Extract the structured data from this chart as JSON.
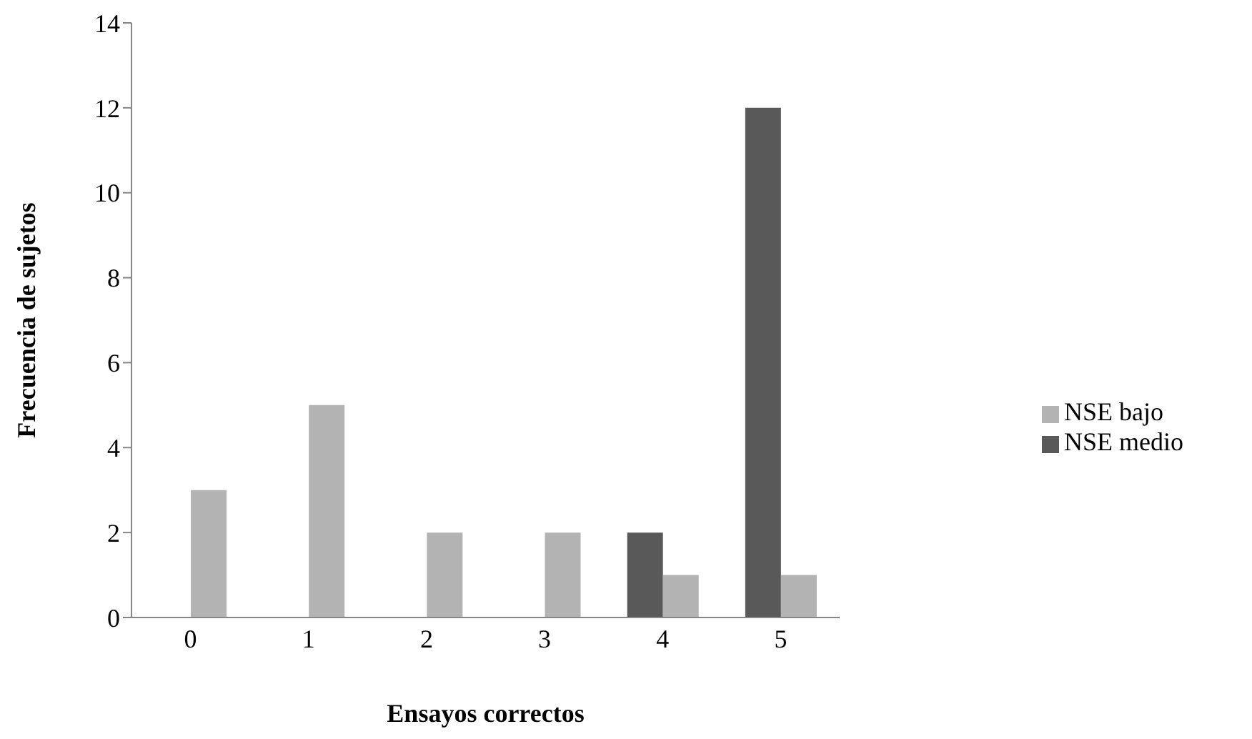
{
  "chart_data": {
    "type": "bar",
    "xlabel": "Ensayos correctos",
    "ylabel": "Frecuencia de sujetos",
    "categories": [
      "0",
      "1",
      "2",
      "3",
      "4",
      "5"
    ],
    "series": [
      {
        "name": "NSE medio",
        "color": "#595959",
        "values": [
          0,
          0,
          0,
          0,
          2,
          12
        ]
      },
      {
        "name": "NSE bajo",
        "color": "#b3b3b3",
        "values": [
          3,
          5,
          2,
          2,
          1,
          1
        ]
      }
    ],
    "ylim": [
      0,
      14
    ],
    "yticks": [
      0,
      2,
      4,
      6,
      8,
      10,
      12,
      14
    ],
    "grid": false,
    "legend": "right"
  }
}
